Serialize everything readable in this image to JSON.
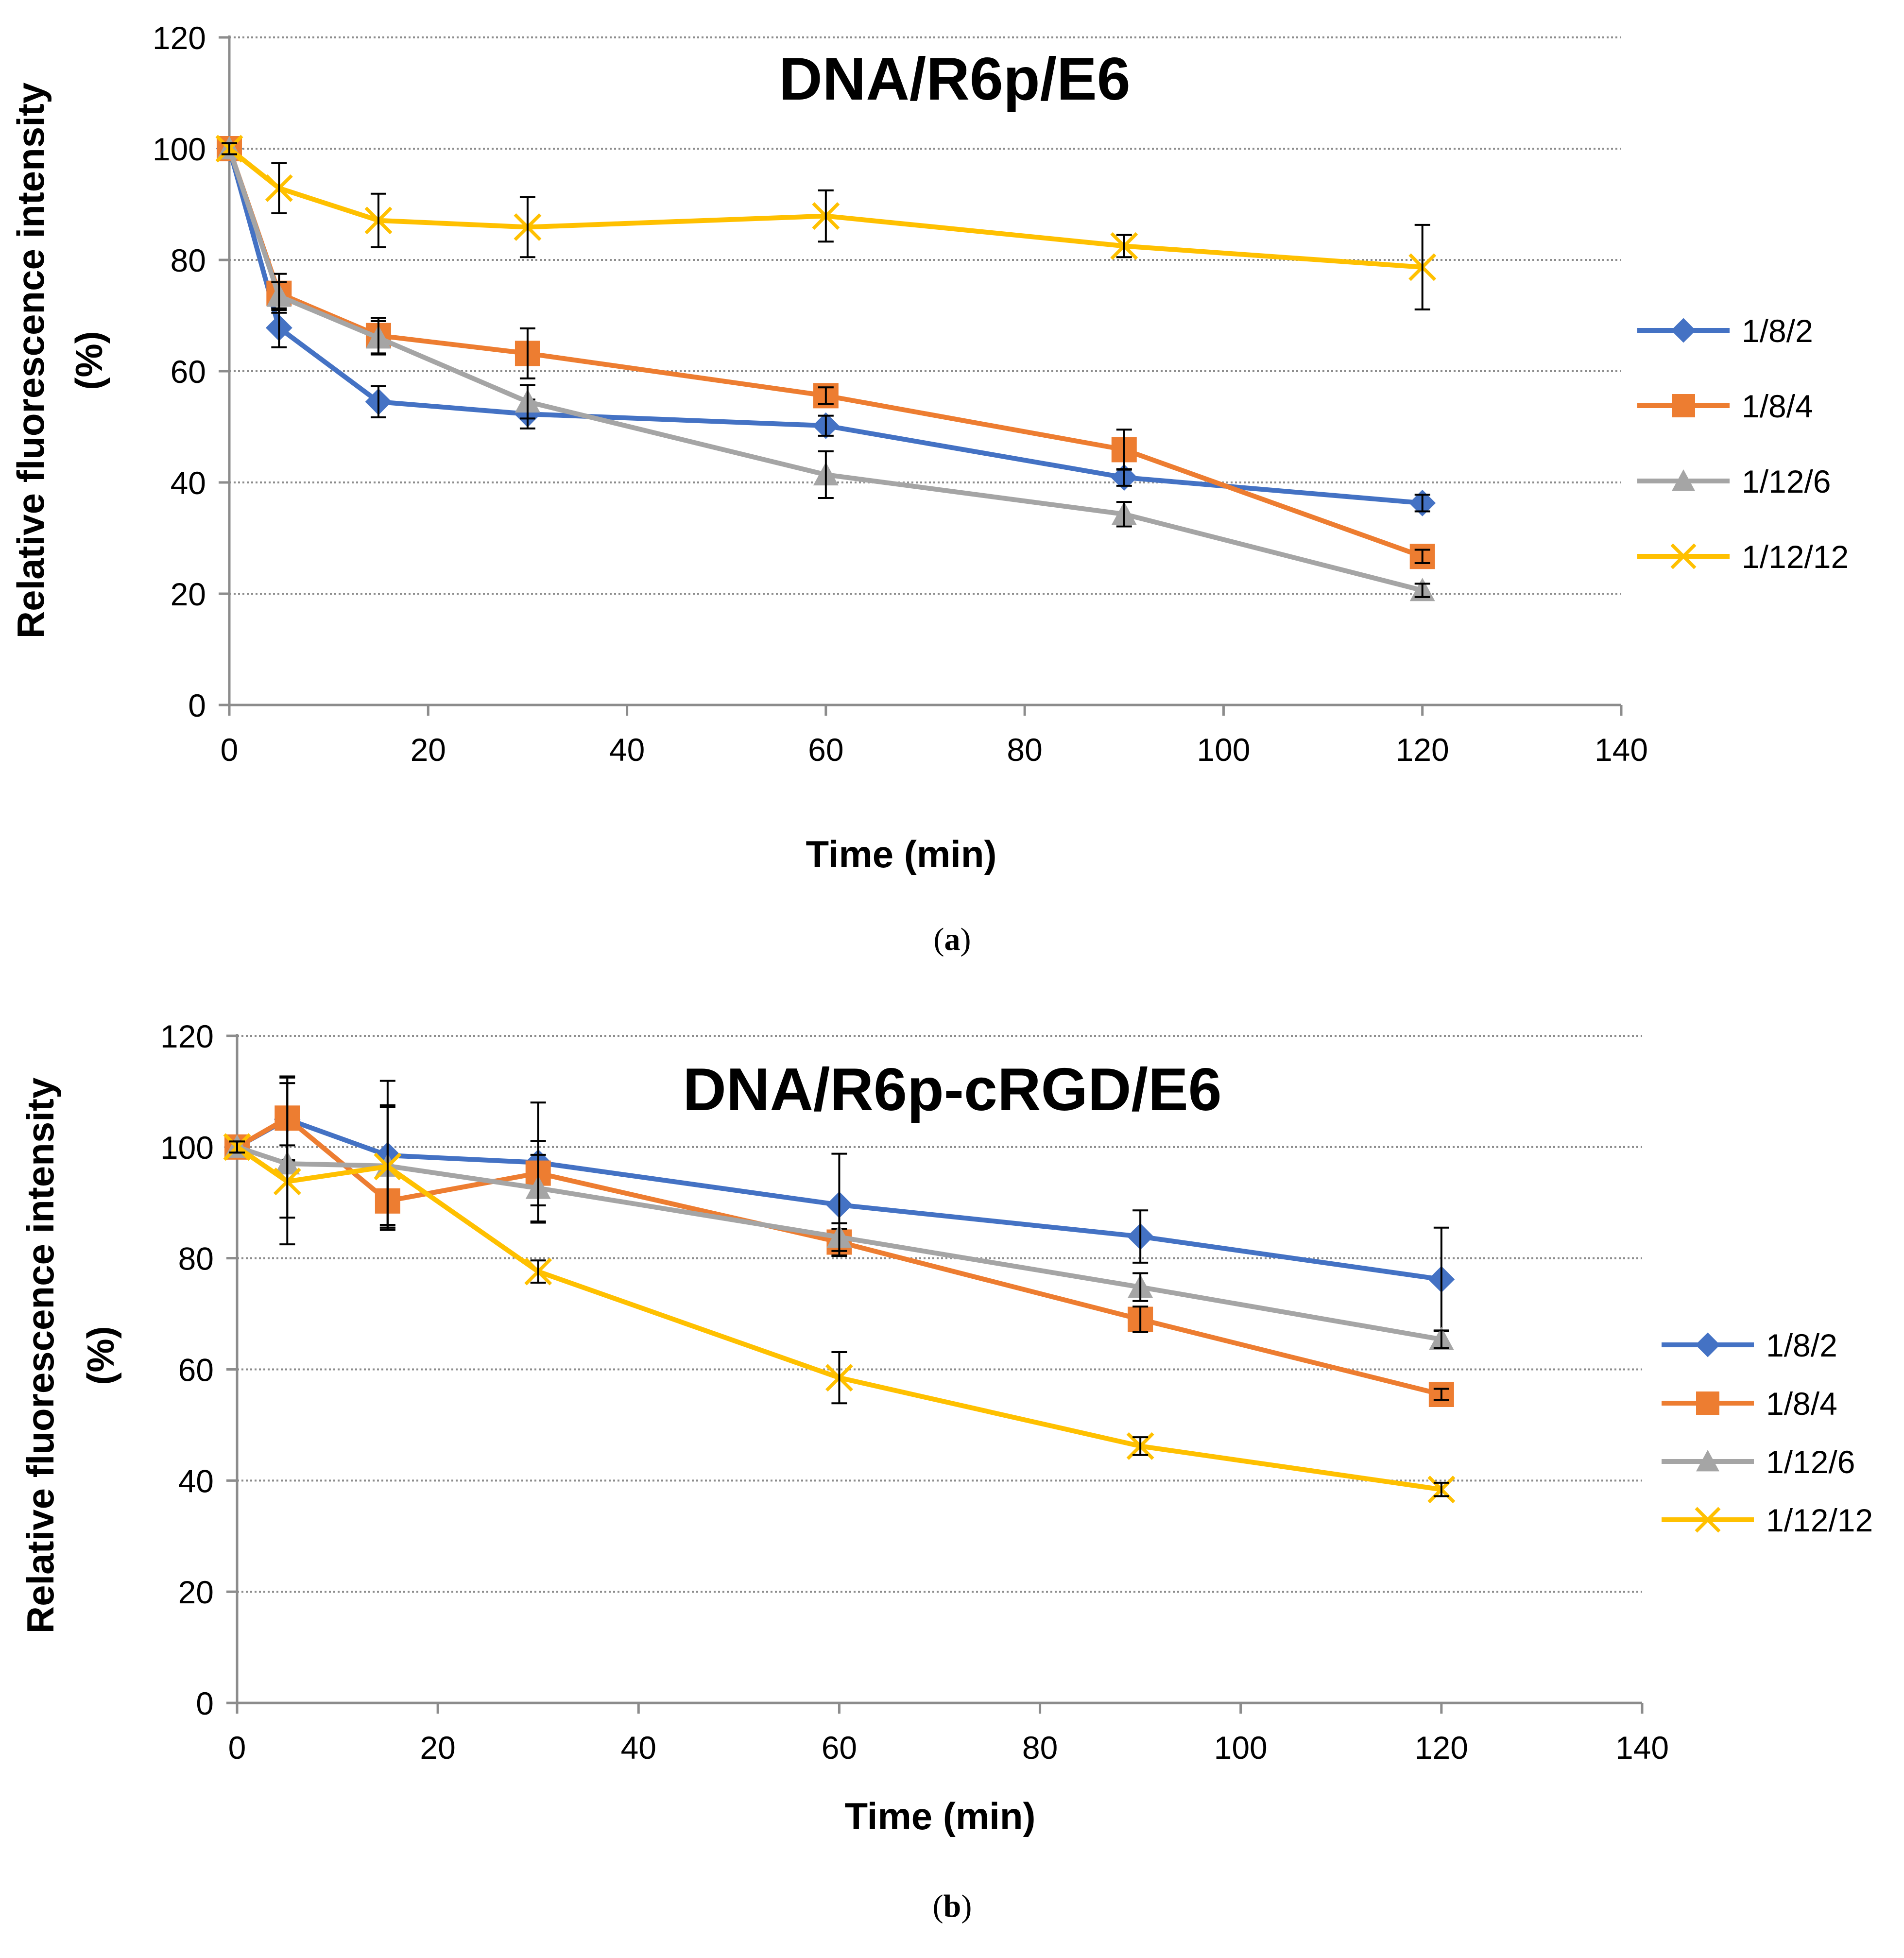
{
  "chart_data": [
    {
      "type": "line",
      "title": "DNA/R6p/E6",
      "xlabel": "Time (min)",
      "ylabel_line1": "Relative fluorescence intensity",
      "ylabel_line2": "(%)",
      "caption_letter": "a",
      "xlim": [
        0,
        140
      ],
      "ylim": [
        0,
        120
      ],
      "xticks": [
        0,
        20,
        40,
        60,
        80,
        100,
        120,
        140
      ],
      "yticks": [
        0,
        20,
        40,
        60,
        80,
        100,
        120
      ],
      "grid": "horizontal-dotted",
      "legend_position": "right",
      "x": [
        0,
        5,
        15,
        30,
        60,
        90,
        120
      ],
      "series": [
        {
          "name": "1/8/2",
          "color": "#4472C4",
          "marker": "diamond",
          "values": [
            100,
            67.8,
            54.5,
            52.3,
            50.2,
            40.9,
            36.3
          ],
          "errors": [
            1.0,
            3.5,
            2.8,
            2.6,
            1.8,
            1.5,
            1.5
          ]
        },
        {
          "name": "1/8/4",
          "color": "#ED7D31",
          "marker": "square",
          "values": [
            100,
            74.0,
            66.4,
            63.2,
            55.6,
            45.9,
            26.7
          ],
          "errors": [
            1.0,
            3.5,
            3.2,
            4.5,
            1.5,
            3.6,
            1.2
          ]
        },
        {
          "name": "1/12/6",
          "color": "#A5A5A5",
          "marker": "triangle",
          "values": [
            100,
            73.5,
            66.0,
            54.5,
            41.4,
            34.3,
            20.6
          ],
          "errors": [
            1.0,
            2.5,
            3.0,
            3.0,
            4.2,
            2.2,
            1.2
          ]
        },
        {
          "name": "1/12/12",
          "color": "#FFC000",
          "marker": "x",
          "values": [
            100,
            92.9,
            87.1,
            85.9,
            87.9,
            82.5,
            78.7
          ],
          "errors": [
            1.0,
            4.5,
            4.8,
            5.4,
            4.6,
            2.0,
            7.6
          ]
        }
      ]
    },
    {
      "type": "line",
      "title": "DNA/R6p-cRGD/E6",
      "xlabel": "Time (min)",
      "ylabel_line1": "Relative fluorescence intensity",
      "ylabel_line2": "(%)",
      "caption_letter": "b",
      "xlim": [
        0,
        140
      ],
      "ylim": [
        0,
        120
      ],
      "xticks": [
        0,
        20,
        40,
        60,
        80,
        100,
        120,
        140
      ],
      "yticks": [
        0,
        20,
        40,
        60,
        80,
        100,
        120
      ],
      "grid": "horizontal-dotted",
      "legend_position": "right",
      "x": [
        0,
        5,
        15,
        30,
        60,
        90,
        120
      ],
      "series": [
        {
          "name": "1/8/2",
          "color": "#4472C4",
          "marker": "diamond",
          "values": [
            100,
            105.0,
            98.5,
            97.2,
            89.6,
            83.9,
            76.2
          ],
          "errors": [
            1.0,
            7.5,
            13.4,
            10.8,
            9.2,
            4.7,
            9.3
          ]
        },
        {
          "name": "1/8/4",
          "color": "#ED7D31",
          "marker": "square",
          "values": [
            100,
            105.2,
            90.3,
            95.3,
            82.9,
            69.0,
            55.5
          ],
          "errors": [
            1.0,
            7.5,
            4.8,
            5.8,
            2.4,
            2.3,
            1.0
          ]
        },
        {
          "name": "1/12/6",
          "color": "#A5A5A5",
          "marker": "triangle",
          "values": [
            100,
            97.0,
            96.6,
            92.6,
            83.8,
            74.8,
            65.4
          ],
          "errors": [
            1.0,
            14.5,
            10.6,
            6.0,
            2.5,
            2.5,
            1.6
          ]
        },
        {
          "name": "1/12/12",
          "color": "#FFC000",
          "marker": "x",
          "values": [
            100,
            93.8,
            96.5,
            77.6,
            58.5,
            46.2,
            38.4
          ],
          "errors": [
            1.0,
            6.5,
            11.0,
            2.0,
            4.6,
            1.6,
            1.2
          ]
        }
      ]
    }
  ]
}
